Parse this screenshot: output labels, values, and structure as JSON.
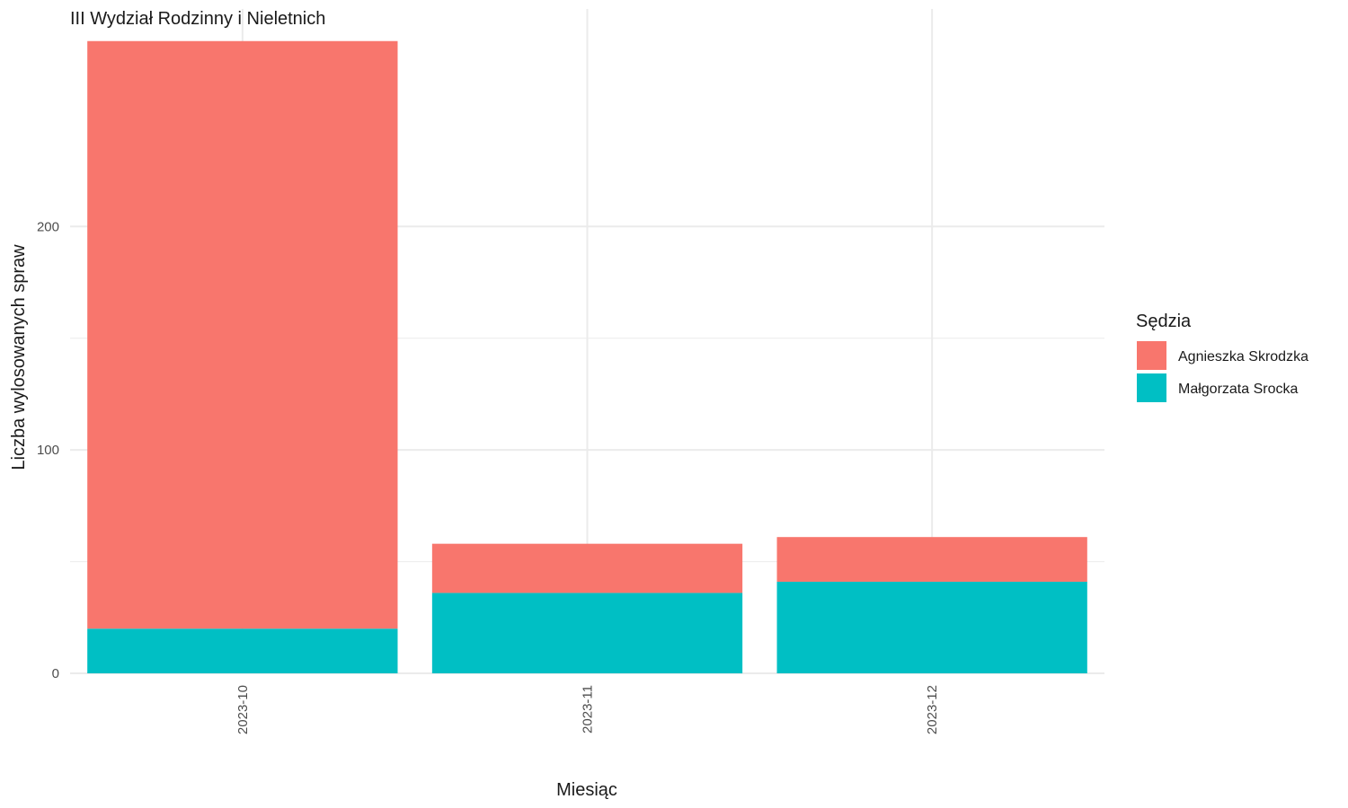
{
  "chart_data": {
    "type": "bar",
    "stacked": true,
    "title": "III Wydział Rodzinny i Nieletnich",
    "xlabel": "Miesiąc",
    "ylabel": "Liczba wylosowanych spraw",
    "categories": [
      "2023-10",
      "2023-11",
      "2023-12"
    ],
    "series": [
      {
        "name": "Agnieszka Skrodzka",
        "color": "#F8766D",
        "values": [
          263,
          22,
          20
        ]
      },
      {
        "name": "Małgorzata Srocka",
        "color": "#00BFC4",
        "values": [
          20,
          36,
          41
        ]
      }
    ],
    "stack_order": [
      "Małgorzata Srocka",
      "Agnieszka Skrodzka"
    ],
    "ylim": [
      0,
      283
    ],
    "yticks": [
      0,
      100,
      200
    ],
    "grid": true,
    "legend": {
      "title": "Sędzia",
      "position": "right"
    }
  }
}
